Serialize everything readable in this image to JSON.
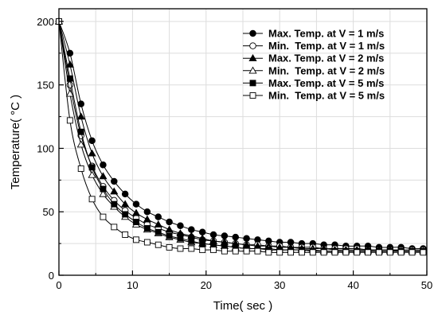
{
  "chart_data": {
    "type": "line",
    "xlabel": "Time( sec )",
    "ylabel": "Temperature( °C )",
    "xlim": [
      0,
      50
    ],
    "ylim": [
      0,
      210
    ],
    "xticks": [
      0,
      10,
      20,
      30,
      40,
      50
    ],
    "yticks": [
      0,
      50,
      100,
      150,
      200
    ],
    "grid": true,
    "legend_position": "top-right",
    "x": [
      0,
      1.5,
      3,
      4.5,
      6,
      7.5,
      9,
      10.5,
      12,
      13.5,
      15,
      16.5,
      18,
      19.5,
      21,
      22.5,
      24,
      25.5,
      27,
      28.5,
      30,
      31.5,
      33,
      34.5,
      36,
      37.5,
      39,
      40.5,
      42,
      43.5,
      45,
      46.5,
      48,
      49.5
    ],
    "series": [
      {
        "name": "Max. Temp. at V = 1 m/s",
        "marker": "circle",
        "filled": true,
        "values": [
          200,
          175,
          135,
          106,
          87,
          74,
          64,
          56,
          50,
          46,
          42,
          39,
          36,
          34,
          32,
          31,
          30,
          29,
          28,
          27,
          26,
          26,
          25,
          25,
          24,
          24,
          23,
          23,
          23,
          22,
          22,
          22,
          21,
          21
        ]
      },
      {
        "name": "Min.  Temp. at V = 1 m/s",
        "marker": "circle",
        "filled": false,
        "values": [
          200,
          150,
          110,
          86,
          70,
          59,
          51,
          45,
          40,
          37,
          34,
          32,
          30,
          28,
          27,
          26,
          25,
          24,
          24,
          23,
          23,
          22,
          22,
          22,
          21,
          21,
          21,
          21,
          20,
          20,
          20,
          20,
          20,
          20
        ]
      },
      {
        "name": "Max. Temp. at V = 2 m/s",
        "marker": "triangle",
        "filled": true,
        "values": [
          200,
          166,
          125,
          96,
          78,
          66,
          56,
          49,
          44,
          40,
          36,
          33,
          31,
          29,
          27,
          26,
          25,
          24,
          23,
          23,
          22,
          22,
          21,
          21,
          21,
          20,
          20,
          20,
          20,
          20,
          20,
          19,
          19,
          19
        ]
      },
      {
        "name": "Min.  Temp. at V = 2 m/s",
        "marker": "triangle",
        "filled": false,
        "values": [
          200,
          143,
          103,
          79,
          64,
          54,
          46,
          40,
          36,
          33,
          30,
          28,
          26,
          25,
          24,
          23,
          22,
          21,
          21,
          21,
          20,
          20,
          20,
          20,
          19,
          19,
          19,
          19,
          19,
          19,
          19,
          19,
          19,
          19
        ]
      },
      {
        "name": "Max. Temp. at V = 5 m/s",
        "marker": "square",
        "filled": true,
        "values": [
          200,
          155,
          113,
          85,
          68,
          56,
          48,
          42,
          37,
          34,
          31,
          29,
          27,
          25,
          24,
          23,
          22,
          21,
          21,
          20,
          20,
          20,
          20,
          19,
          19,
          19,
          19,
          19,
          19,
          19,
          19,
          19,
          19,
          19
        ]
      },
      {
        "name": "Min.  Temp. at V = 5 m/s",
        "marker": "square",
        "filled": false,
        "values": [
          200,
          122,
          84,
          60,
          46,
          38,
          32,
          28,
          26,
          24,
          22,
          21,
          21,
          20,
          20,
          19,
          19,
          19,
          19,
          18,
          18,
          18,
          18,
          18,
          18,
          18,
          18,
          18,
          18,
          18,
          18,
          18,
          18,
          18
        ]
      }
    ]
  }
}
